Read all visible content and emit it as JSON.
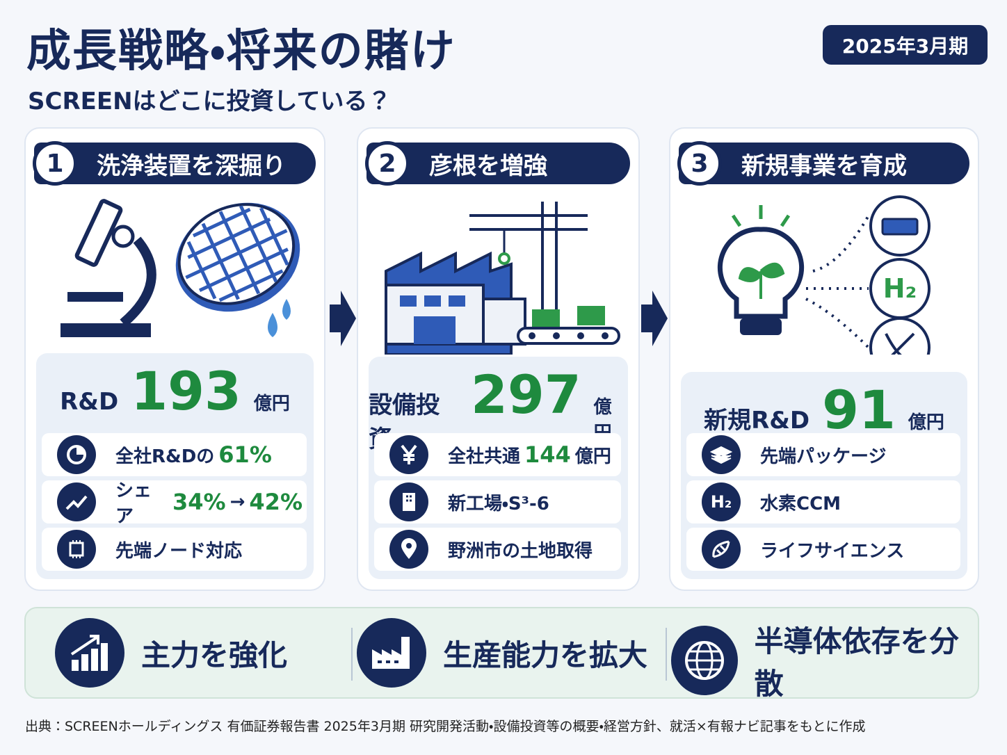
{
  "header": {
    "title": "成長戦略・将来の賭け",
    "period": "2025年3月期",
    "subtitle": "SCREENはどこに投資している？"
  },
  "panels": [
    {
      "number": "1",
      "heading": "洗浄装置を深掘り",
      "metric": {
        "label": "R&D",
        "value": "193",
        "unit": "億円"
      },
      "items": [
        {
          "parts": [
            {
              "text": "全社R&Dの"
            },
            {
              "text": "61%",
              "accent": true
            }
          ]
        },
        {
          "parts": [
            {
              "text": "シェア"
            },
            {
              "text": "34%",
              "accent": true
            },
            {
              "text": "→"
            },
            {
              "text": "42%",
              "accent": true
            }
          ]
        },
        {
          "parts": [
            {
              "text": "先端ノード対応"
            }
          ]
        }
      ]
    },
    {
      "number": "2",
      "heading": "彦根を増強",
      "metric": {
        "label": "設備投資",
        "value": "297",
        "unit": "億円"
      },
      "items": [
        {
          "parts": [
            {
              "text": "全社共通"
            },
            {
              "text": "144",
              "accent": true
            },
            {
              "text": "億円"
            }
          ]
        },
        {
          "parts": [
            {
              "text": "新工場・S³-6"
            }
          ]
        },
        {
          "parts": [
            {
              "text": "野洲市の土地取得"
            }
          ]
        }
      ]
    },
    {
      "number": "3",
      "heading": "新規事業を育成",
      "metric": {
        "label": "新規R&D",
        "value": "91",
        "unit": "億円"
      },
      "items": [
        {
          "parts": [
            {
              "text": "先端パッケージ"
            }
          ]
        },
        {
          "icon_label": "H₂",
          "parts": [
            {
              "text": "水素CCM"
            }
          ]
        },
        {
          "parts": [
            {
              "text": "ライフサイエンス"
            }
          ]
        }
      ]
    }
  ],
  "outcomes": [
    "主力を強化",
    "生産能力を拡大",
    "半導体依存を分散"
  ],
  "source": "出典：SCREENホールディングス 有価証券報告書 2025年3月期 研究開発活動・設備投資等の概要・経営方針、就活×有報ナビ記事をもとに作成"
}
